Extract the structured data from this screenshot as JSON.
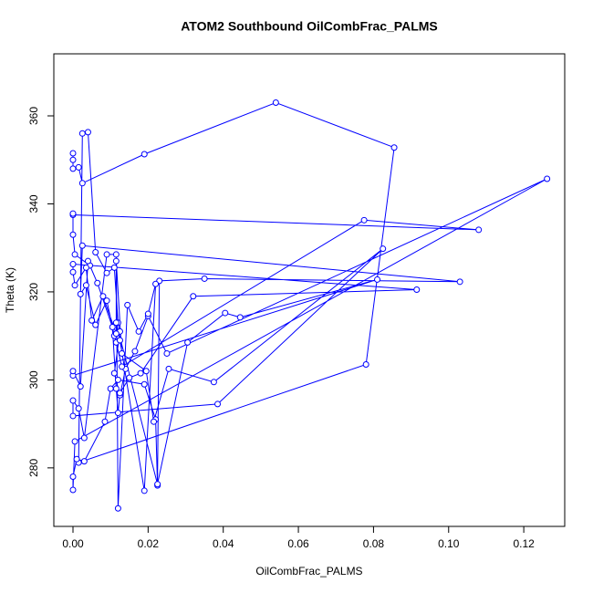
{
  "chart_data": {
    "type": "line",
    "markers": "circle-open",
    "title": "ATOM2 Southbound OilCombFrac_PALMS",
    "x_label": "OilCombFrac_PALMS",
    "y_label": "Theta (K)",
    "color": "#0000ff",
    "x": [
      0,
      0,
      0,
      0.0015,
      0.0025,
      0.019,
      0.054,
      0.0855,
      0.078,
      0.0015,
      0.0025,
      0.004,
      0.006,
      0.009,
      0.011,
      0.012,
      0.0125,
      0.011,
      0.0125,
      0.014,
      0.0165,
      0.02,
      0.025,
      0.1262,
      0.0005,
      0,
      0,
      0.001,
      0.003,
      0.0085,
      0.01,
      0.012,
      0.019,
      0.022,
      0.0225,
      0.023,
      0.035,
      0.103,
      0.0025,
      0.002,
      0.0035,
      0.006,
      0.009,
      0.011,
      0.0115,
      0.013,
      0.0775,
      0.108,
      0,
      0,
      0,
      0.0005,
      0.0045,
      0.0065,
      0.0105,
      0.0115,
      0.012,
      0.0125,
      0.015,
      0.018,
      0.032,
      0.0915,
      0,
      0,
      0.0005,
      0.0035,
      0.005,
      0.008,
      0.0115,
      0.0115,
      0.013,
      0.0195,
      0.0215,
      0.0255,
      0.0375,
      0.0825,
      0.0385,
      0,
      0,
      0.0015,
      0.003,
      0.009,
      0.0115,
      0.012,
      0.0145,
      0.0175,
      0.02,
      0.022,
      0.019,
      0.0125,
      0.0115,
      0.0225,
      0.0305,
      0.0405,
      0.0445,
      0.081,
      0,
      0,
      0.002,
      0.004
    ],
    "values": [
      351.5,
      350,
      348,
      348.3,
      344.7,
      351.3,
      363,
      352.8,
      303.5,
      281.2,
      356,
      356.3,
      329,
      324.3,
      325.5,
      313,
      311,
      301.5,
      296.5,
      302.5,
      306.5,
      314.5,
      306,
      345.7,
      286,
      275,
      278,
      282,
      281.5,
      290.5,
      298,
      300,
      299,
      291,
      276,
      322.5,
      323,
      322.3,
      330.5,
      319.5,
      321.5,
      312.5,
      318,
      310,
      308.5,
      303,
      336.3,
      334.1,
      337.5,
      337.8,
      333,
      328.5,
      326,
      322,
      312,
      298,
      292.5,
      297,
      300.5,
      301.5,
      319,
      320.5,
      326.3,
      324.5,
      321.5,
      325.5,
      313.5,
      319,
      310.5,
      327,
      306,
      302,
      290.5,
      302.5,
      299.5,
      329.8,
      294.5,
      291.8,
      295.3,
      293.5,
      286.8,
      328.5,
      328.5,
      270.8,
      317,
      311,
      315,
      321.8,
      274.8,
      309,
      313,
      276.3,
      308.5,
      315.2,
      314.2,
      322.8,
      301,
      302,
      298.5,
      327
    ],
    "xlim": [
      -0.0051,
      0.1309
    ],
    "ylim": [
      266.7,
      374.1
    ],
    "xticks": [
      {
        "value": 0,
        "label": "0.00"
      },
      {
        "value": 0.02,
        "label": "0.02"
      },
      {
        "value": 0.04,
        "label": "0.04"
      },
      {
        "value": 0.06,
        "label": "0.06"
      },
      {
        "value": 0.08,
        "label": "0.08"
      },
      {
        "value": 0.1,
        "label": "0.10"
      },
      {
        "value": 0.12,
        "label": "0.12"
      }
    ],
    "yticks": [
      280,
      300,
      320,
      340,
      360
    ],
    "grid": false
  }
}
